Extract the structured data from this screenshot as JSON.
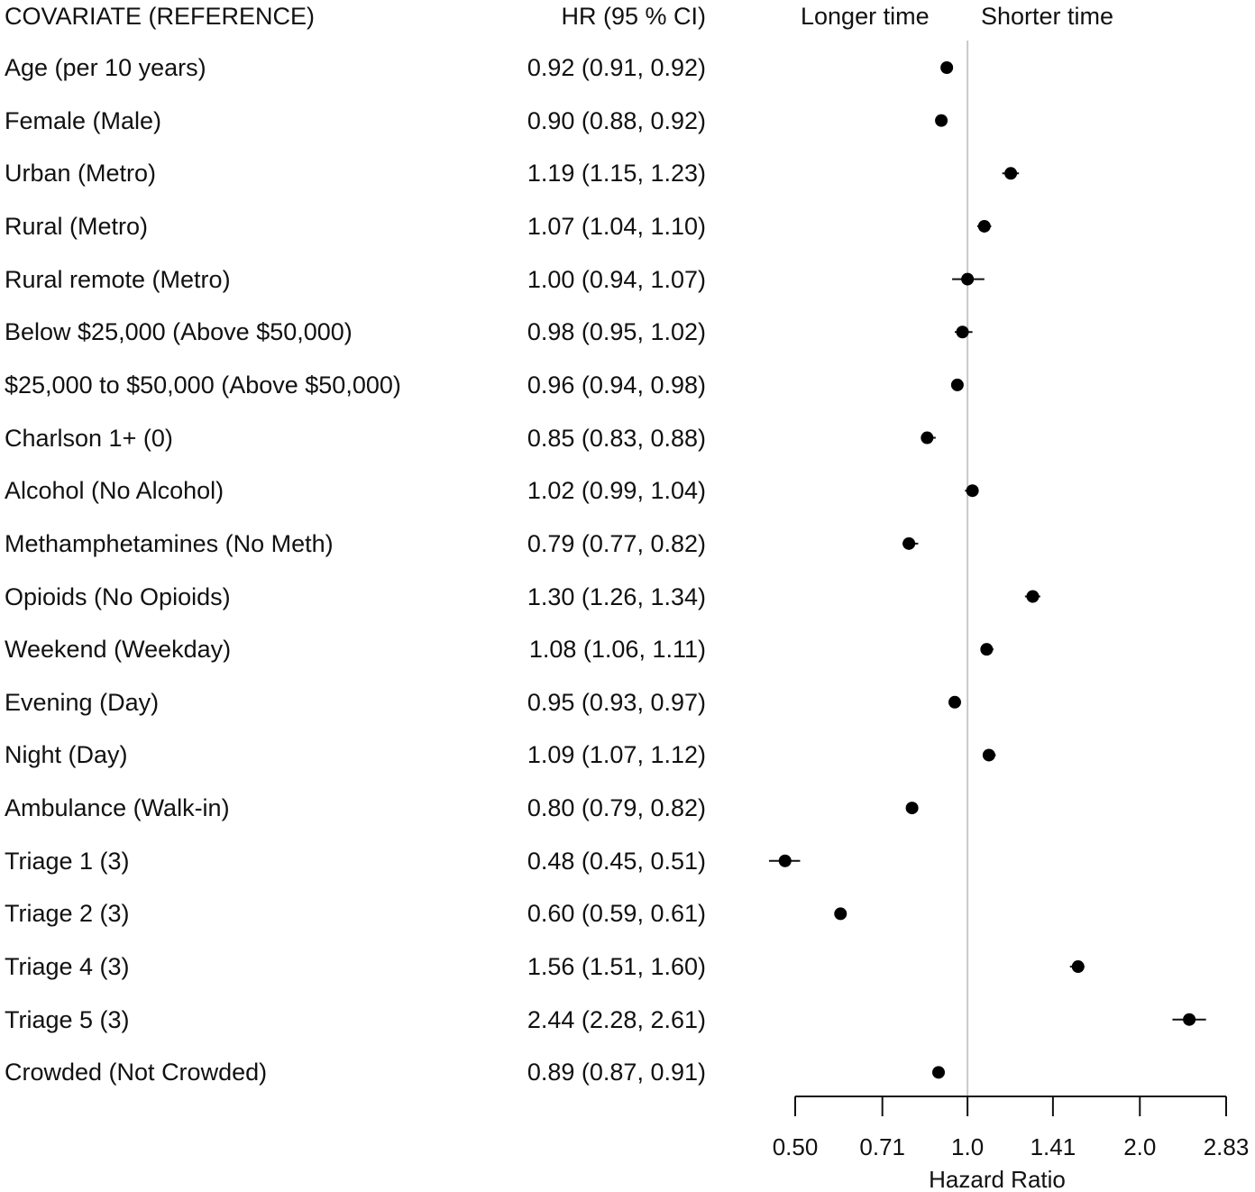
{
  "header": {
    "covariate": "COVARIATE (REFERENCE)",
    "hr": "HR (95 % CI)",
    "longer": "Longer time",
    "shorter": "Shorter time"
  },
  "chart_data": {
    "type": "forest",
    "title": "",
    "xlabel": "Hazard Ratio",
    "xscale": "log2",
    "xlim": [
      0.5,
      2.83
    ],
    "reference_line": 1.0,
    "ticks": [
      {
        "value": 0.5,
        "label": "0.50"
      },
      {
        "value": 0.71,
        "label": "0.71"
      },
      {
        "value": 1.0,
        "label": "1.0"
      },
      {
        "value": 1.41,
        "label": "1.41"
      },
      {
        "value": 2.0,
        "label": "2.0"
      },
      {
        "value": 2.83,
        "label": "2.83"
      }
    ],
    "rows": [
      {
        "label": "Age (per 10 years)",
        "hr_text": "0.92 (0.91, 0.92)",
        "hr": 0.92,
        "lo": 0.91,
        "hi": 0.92
      },
      {
        "label": "Female (Male)",
        "hr_text": "0.90 (0.88, 0.92)",
        "hr": 0.9,
        "lo": 0.88,
        "hi": 0.92
      },
      {
        "label": "Urban (Metro)",
        "hr_text": "1.19 (1.15, 1.23)",
        "hr": 1.19,
        "lo": 1.15,
        "hi": 1.23
      },
      {
        "label": "Rural (Metro)",
        "hr_text": "1.07 (1.04, 1.10)",
        "hr": 1.07,
        "lo": 1.04,
        "hi": 1.1
      },
      {
        "label": "Rural remote (Metro)",
        "hr_text": "1.00 (0.94, 1.07)",
        "hr": 1.0,
        "lo": 0.94,
        "hi": 1.07
      },
      {
        "label": "Below $25,000 (Above $50,000)",
        "hr_text": "0.98 (0.95, 1.02)",
        "hr": 0.98,
        "lo": 0.95,
        "hi": 1.02
      },
      {
        "label": "$25,000 to $50,000 (Above $50,000)",
        "hr_text": "0.96 (0.94, 0.98)",
        "hr": 0.96,
        "lo": 0.94,
        "hi": 0.98
      },
      {
        "label": "Charlson 1+ (0)",
        "hr_text": "0.85 (0.83, 0.88)",
        "hr": 0.85,
        "lo": 0.83,
        "hi": 0.88
      },
      {
        "label": "Alcohol (No Alcohol)",
        "hr_text": "1.02 (0.99, 1.04)",
        "hr": 1.02,
        "lo": 0.99,
        "hi": 1.04
      },
      {
        "label": "Methamphetamines (No Meth)",
        "hr_text": "0.79 (0.77, 0.82)",
        "hr": 0.79,
        "lo": 0.77,
        "hi": 0.82
      },
      {
        "label": "Opioids (No Opioids)",
        "hr_text": "1.30 (1.26, 1.34)",
        "hr": 1.3,
        "lo": 1.26,
        "hi": 1.34
      },
      {
        "label": "Weekend (Weekday)",
        "hr_text": "1.08 (1.06, 1.11)",
        "hr": 1.08,
        "lo": 1.06,
        "hi": 1.11
      },
      {
        "label": "Evening (Day)",
        "hr_text": "0.95 (0.93, 0.97)",
        "hr": 0.95,
        "lo": 0.93,
        "hi": 0.97
      },
      {
        "label": "Night (Day)",
        "hr_text": "1.09 (1.07, 1.12)",
        "hr": 1.09,
        "lo": 1.07,
        "hi": 1.12
      },
      {
        "label": "Ambulance (Walk-in)",
        "hr_text": "0.80 (0.79, 0.82)",
        "hr": 0.8,
        "lo": 0.79,
        "hi": 0.82
      },
      {
        "label": "Triage 1 (3)",
        "hr_text": "0.48 (0.45, 0.51)",
        "hr": 0.48,
        "lo": 0.45,
        "hi": 0.51
      },
      {
        "label": "Triage 2 (3)",
        "hr_text": "0.60 (0.59, 0.61)",
        "hr": 0.6,
        "lo": 0.59,
        "hi": 0.61
      },
      {
        "label": "Triage 4 (3)",
        "hr_text": "1.56 (1.51, 1.60)",
        "hr": 1.56,
        "lo": 1.51,
        "hi": 1.6
      },
      {
        "label": "Triage 5 (3)",
        "hr_text": "2.44 (2.28, 2.61)",
        "hr": 2.44,
        "lo": 2.28,
        "hi": 2.61
      },
      {
        "label": "Crowded (Not Crowded)",
        "hr_text": "0.89 (0.87, 0.91)",
        "hr": 0.89,
        "lo": 0.87,
        "hi": 0.91
      }
    ]
  }
}
